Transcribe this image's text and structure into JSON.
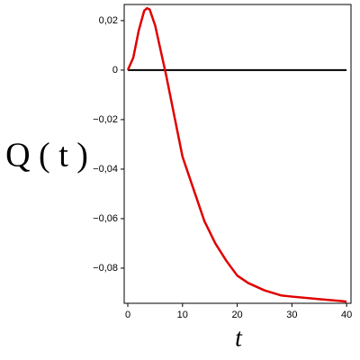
{
  "chart_data": {
    "type": "line",
    "xlabel": "t",
    "ylabel": "Q ( t )",
    "x": [
      0,
      1,
      2,
      3,
      3.5,
      4,
      5,
      6,
      7,
      8,
      9,
      10,
      12,
      14,
      16,
      18,
      20,
      22,
      25,
      28,
      30,
      35,
      40
    ],
    "series": [
      {
        "color": "#e00000",
        "values": [
          0,
          0.005,
          0.016,
          0.024,
          0.025,
          0.0245,
          0.018,
          0.008,
          -0.002,
          -0.013,
          -0.024,
          -0.035,
          -0.048,
          -0.061,
          -0.07,
          -0.077,
          -0.083,
          -0.086,
          -0.089,
          -0.091,
          -0.0915,
          -0.0925,
          -0.0935
        ]
      }
    ],
    "xlim": [
      -0.66,
      40.8
    ],
    "ylim": [
      -0.0942,
      0.0265
    ],
    "xticks": [
      0,
      10,
      20,
      30,
      40
    ],
    "yticks": [
      {
        "value": 0.02,
        "label": "0,02"
      },
      0,
      {
        "value": -0.02,
        "label": "−0,02"
      },
      {
        "value": -0.04,
        "label": "−0,04"
      },
      {
        "value": -0.06,
        "label": "−0,06"
      },
      {
        "value": -0.08,
        "label": "−0,08"
      }
    ]
  }
}
